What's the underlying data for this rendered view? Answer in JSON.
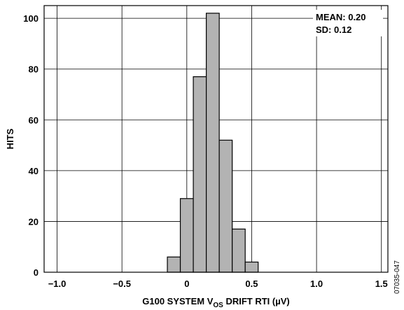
{
  "chart_data": {
    "type": "bar",
    "histogram": true,
    "xlabel": "G100 SYSTEM V_OS DRIFT RTI (µV)",
    "xlabel_parts": {
      "prefix": "G100 SYSTEM V",
      "subscript": "OS",
      "suffix": " DRIFT RTI (µV)"
    },
    "ylabel": "HITS",
    "xlim": [
      -1.1,
      1.55
    ],
    "ylim": [
      0,
      105
    ],
    "x_ticks": [
      -1.0,
      -0.5,
      0,
      0.5,
      1.0,
      1.5
    ],
    "x_tick_labels": [
      "−1.0",
      "−0.5",
      "0",
      "0.5",
      "1.0",
      "1.5"
    ],
    "y_ticks": [
      0,
      20,
      40,
      60,
      80,
      100
    ],
    "y_tick_labels": [
      "0",
      "20",
      "40",
      "60",
      "80",
      "100"
    ],
    "grid": true,
    "bins": [
      {
        "x0": -0.15,
        "x1": -0.05,
        "value": 6
      },
      {
        "x0": -0.05,
        "x1": 0.05,
        "value": 29
      },
      {
        "x0": 0.05,
        "x1": 0.15,
        "value": 77
      },
      {
        "x0": 0.15,
        "x1": 0.25,
        "value": 102
      },
      {
        "x0": 0.25,
        "x1": 0.35,
        "value": 52
      },
      {
        "x0": 0.35,
        "x1": 0.45,
        "value": 17
      },
      {
        "x0": 0.45,
        "x1": 0.55,
        "value": 4
      }
    ],
    "stats": [
      "MEAN: 0.20",
      "SD: 0.12"
    ],
    "bar_fill": "#b3b3b3",
    "bar_stroke": "#000000"
  },
  "figure_id": "07035-047"
}
